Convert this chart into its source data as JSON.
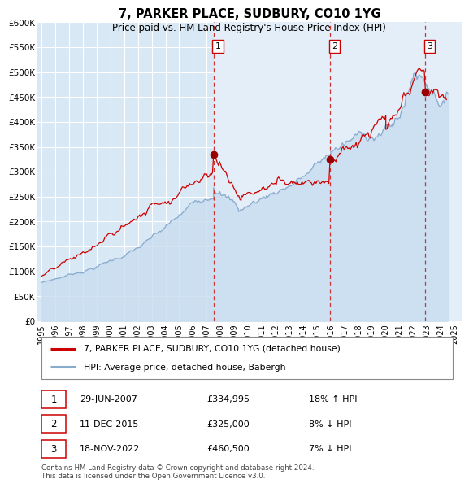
{
  "title": "7, PARKER PLACE, SUDBURY, CO10 1YG",
  "subtitle": "Price paid vs. HM Land Registry's House Price Index (HPI)",
  "ylim": [
    0,
    600000
  ],
  "yticks": [
    0,
    50000,
    100000,
    150000,
    200000,
    250000,
    300000,
    350000,
    400000,
    450000,
    500000,
    550000,
    600000
  ],
  "ytick_labels": [
    "£0",
    "£50K",
    "£100K",
    "£150K",
    "£200K",
    "£250K",
    "£300K",
    "£350K",
    "£400K",
    "£450K",
    "£500K",
    "£550K",
    "£600K"
  ],
  "xlim_start": 1994.7,
  "xlim_end": 2025.5,
  "xtick_years": [
    1995,
    1996,
    1997,
    1998,
    1999,
    2000,
    2001,
    2002,
    2003,
    2004,
    2005,
    2006,
    2007,
    2008,
    2009,
    2010,
    2011,
    2012,
    2013,
    2014,
    2015,
    2016,
    2017,
    2018,
    2019,
    2020,
    2021,
    2022,
    2023,
    2024,
    2025
  ],
  "sale_color": "#cc0000",
  "hpi_color": "#88aacc",
  "plot_bg": "#d8e8f5",
  "shade_between_color": "#e4eef8",
  "grid_color": "#ffffff",
  "marker_color": "#990000",
  "vline_color": "#cc3333",
  "annotation_border": "#cc0000",
  "transaction_dates": [
    2007.496,
    2015.944,
    2022.88
  ],
  "transaction_prices": [
    334995,
    325000,
    460500
  ],
  "transaction_labels": [
    "1",
    "2",
    "3"
  ],
  "vline_x": [
    2007.496,
    2015.944,
    2022.88
  ],
  "legend_label_sale": "7, PARKER PLACE, SUDBURY, CO10 1YG (detached house)",
  "legend_label_hpi": "HPI: Average price, detached house, Babergh",
  "table_rows": [
    {
      "num": "1",
      "date": "29-JUN-2007",
      "price": "£334,995",
      "pct": "18% ↑ HPI"
    },
    {
      "num": "2",
      "date": "11-DEC-2015",
      "price": "£325,000",
      "pct": "8% ↓ HPI"
    },
    {
      "num": "3",
      "date": "18-NOV-2022",
      "price": "£460,500",
      "pct": "7% ↓ HPI"
    }
  ],
  "footer": "Contains HM Land Registry data © Crown copyright and database right 2024.\nThis data is licensed under the Open Government Licence v3.0."
}
